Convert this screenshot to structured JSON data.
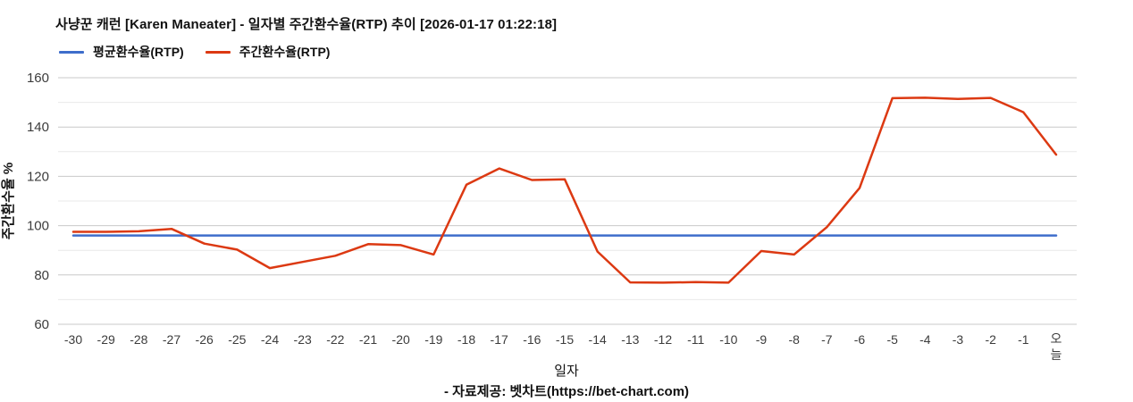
{
  "header": {
    "title": "사냥꾼 캐런 [Karen Maneater] - 일자별 주간환수율(RTP) 추이 [2026-01-17 01:22:18]"
  },
  "chart_data": {
    "type": "line",
    "title": "사냥꾼 캐런 [Karen Maneater] - 일자별 주간환수율(RTP) 추이 [2026-01-17 01:22:18]",
    "xlabel": "일자",
    "ylabel": "주간환수율 %",
    "ylim": [
      60,
      160
    ],
    "y_major_ticks": [
      60,
      80,
      100,
      120,
      140,
      160
    ],
    "y_minor_step": 10,
    "grid": "horizontal",
    "legend_position": "top-left",
    "x_labels": [
      "-30",
      "-29",
      "-28",
      "-27",
      "-26",
      "-25",
      "-24",
      "-23",
      "-22",
      "-21",
      "-20",
      "-19",
      "-18",
      "-17",
      "-16",
      "-15",
      "-14",
      "-13",
      "-12",
      "-11",
      "-10",
      "-9",
      "-8",
      "-7",
      "-6",
      "-5",
      "-4",
      "-3",
      "-2",
      "-1",
      "오늘"
    ],
    "series": [
      {
        "name": "평균환수율(RTP)",
        "color": "#3e6dcb",
        "constant": 96
      },
      {
        "name": "주간환수율(RTP)",
        "color": "#dc3912",
        "values": [
          97.5,
          97.5,
          97.7,
          98.7,
          92.7,
          90.3,
          82.8,
          85.3,
          87.8,
          92.5,
          92.1,
          88.3,
          116.6,
          123.2,
          118.5,
          118.8,
          89.5,
          77.0,
          76.9,
          77.1,
          76.9,
          89.7,
          88.3,
          99.4,
          115.3,
          151.7,
          151.9,
          151.4,
          151.8,
          146.0,
          128.8
        ]
      }
    ],
    "grid_colors": {
      "major": "#c9c9c9",
      "minor": "#e9e9e9"
    },
    "tick_label_color": "#3c3c3c"
  },
  "footer": {
    "source": "- 자료제공: 벳차트(https://bet-chart.com)"
  }
}
